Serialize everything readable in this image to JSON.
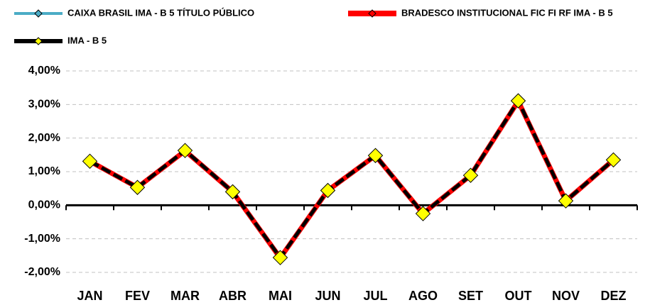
{
  "chart_data": {
    "type": "line",
    "categories": [
      "JAN",
      "FEV",
      "MAR",
      "ABR",
      "MAI",
      "JUN",
      "JUL",
      "AGO",
      "SET",
      "OUT",
      "NOV",
      "DEZ"
    ],
    "series": [
      {
        "name": "CAIXA BRASIL IMA - B 5 TÍTULO PÚBLICO",
        "color": "#4bacc6",
        "values": [
          1.3,
          0.53,
          1.6,
          0.41,
          -1.62,
          0.43,
          1.46,
          -0.22,
          0.88,
          3.04,
          0.14,
          1.33
        ]
      },
      {
        "name": "BRADESCO INSTITUCIONAL FIC FI RF IMA - B 5",
        "color": "#ff0000",
        "values": [
          1.31,
          0.53,
          1.62,
          0.4,
          -1.57,
          0.44,
          1.48,
          -0.25,
          0.89,
          3.1,
          0.13,
          1.35
        ]
      },
      {
        "name": "IMA - B 5",
        "color": "#000000",
        "marker": "#ffff00",
        "values": [
          1.31,
          0.53,
          1.63,
          0.4,
          -1.56,
          0.44,
          1.48,
          -0.25,
          0.89,
          3.11,
          0.13,
          1.35
        ]
      }
    ],
    "ylim": [
      -2,
      4
    ],
    "yticks": [
      {
        "value": -2,
        "label": "-2,00%"
      },
      {
        "value": -1,
        "label": "-1,00%"
      },
      {
        "value": 0,
        "label": "0,00%"
      },
      {
        "value": 1,
        "label": "1,00%"
      },
      {
        "value": 2,
        "label": "2,00%"
      },
      {
        "value": 3,
        "label": "3,00%"
      },
      {
        "value": 4,
        "label": "4,00%"
      }
    ],
    "grid": true
  }
}
